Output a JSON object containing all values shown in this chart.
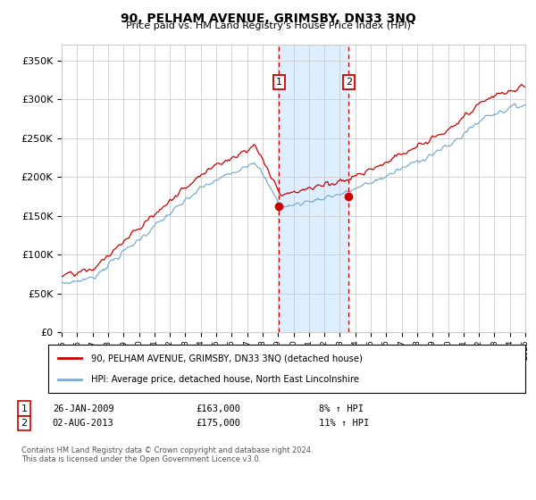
{
  "title": "90, PELHAM AVENUE, GRIMSBY, DN33 3NQ",
  "subtitle": "Price paid vs. HM Land Registry's House Price Index (HPI)",
  "legend_line1": "90, PELHAM AVENUE, GRIMSBY, DN33 3NQ (detached house)",
  "legend_line2": "HPI: Average price, detached house, North East Lincolnshire",
  "transaction1_date": "26-JAN-2009",
  "transaction1_price": 163000,
  "transaction1_pct": "8%",
  "transaction2_date": "02-AUG-2013",
  "transaction2_price": 175000,
  "transaction2_pct": "11%",
  "footnote": "Contains HM Land Registry data © Crown copyright and database right 2024.\nThis data is licensed under the Open Government Licence v3.0.",
  "red_color": "#cc0000",
  "blue_color": "#7aadd4",
  "shade_color": "#ddeeff",
  "background_color": "#ffffff",
  "grid_color": "#cccccc",
  "ylim": [
    0,
    370000
  ],
  "year_start": 1995,
  "year_end": 2025,
  "transaction1_year": 2009.07,
  "transaction2_year": 2013.58
}
